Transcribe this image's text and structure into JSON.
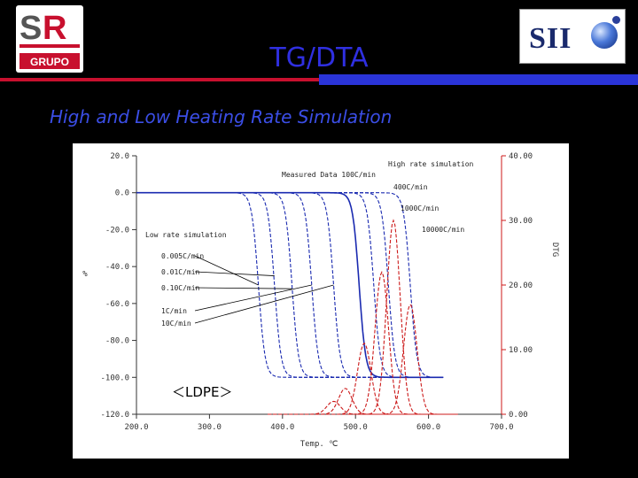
{
  "slide": {
    "title": "TG/DTA",
    "subtitle": "High and Low Heating  Rate Simulation",
    "logo_left": "GRUPO",
    "logo_right": "SII"
  },
  "chart_data": {
    "type": "line",
    "xlabel": "Temp. ℃",
    "ylabel_left": "%",
    "ylabel_right": "DTG",
    "xlim": [
      200,
      700
    ],
    "ylim_left": [
      -120,
      20
    ],
    "ylim_right": [
      0,
      40
    ],
    "x_ticks": [
      "200.0",
      "300.0",
      "400.0",
      "500.0",
      "600.0",
      "700.0"
    ],
    "y_left_ticks": [
      "20.0",
      "0.0",
      "-20.0",
      "-40.0",
      "-60.0",
      "-80.0",
      "-100.0",
      "-120.0"
    ],
    "y_right_ticks": [
      "0.00",
      "10.00",
      "20.00",
      "30.00",
      "40.00"
    ],
    "colors": {
      "tg": "#1a2ab0",
      "dtg": "#cc1a1a",
      "measured": "#1a2ab0"
    },
    "annotations": {
      "measured": "Measured Data 100C/min",
      "high": "High rate simulation",
      "low": "Low rate simulation",
      "material": "＜LDPE＞"
    },
    "tg_series": [
      {
        "name": "0.005C/min",
        "step_at": 367,
        "style": "dashed"
      },
      {
        "name": "0.01C/min",
        "step_at": 389,
        "style": "dashed"
      },
      {
        "name": "0.10C/min",
        "step_at": 413,
        "style": "dashed"
      },
      {
        "name": "1C/min",
        "step_at": 440,
        "style": "dashed"
      },
      {
        "name": "10C/min",
        "step_at": 470,
        "style": "dashed"
      },
      {
        "name": "100C/min",
        "step_at": 505,
        "style": "solid"
      },
      {
        "name": "400C/min",
        "step_at": 525,
        "style": "dashed"
      },
      {
        "name": "1000C/min",
        "step_at": 545,
        "style": "dashed"
      },
      {
        "name": "10000C/min",
        "step_at": 575,
        "style": "dashed"
      }
    ],
    "dtg_series": [
      {
        "name": "1C/min",
        "peak_at": 470,
        "height": 2
      },
      {
        "name": "10C/min",
        "peak_at": 486,
        "height": 4
      },
      {
        "name": "100C/min",
        "peak_at": 512,
        "height": 11
      },
      {
        "name": "400C/min",
        "peak_at": 536,
        "height": 22
      },
      {
        "name": "1000C/min",
        "peak_at": 552,
        "height": 30
      },
      {
        "name": "10000C/min",
        "peak_at": 575,
        "height": 17
      }
    ],
    "low_rate_labels": [
      "0.005C/min",
      "0.01C/min",
      "0.10C/min",
      "1C/min",
      "10C/min"
    ],
    "high_rate_labels": [
      "400C/min",
      "1000C/min",
      "10000C/min"
    ]
  }
}
